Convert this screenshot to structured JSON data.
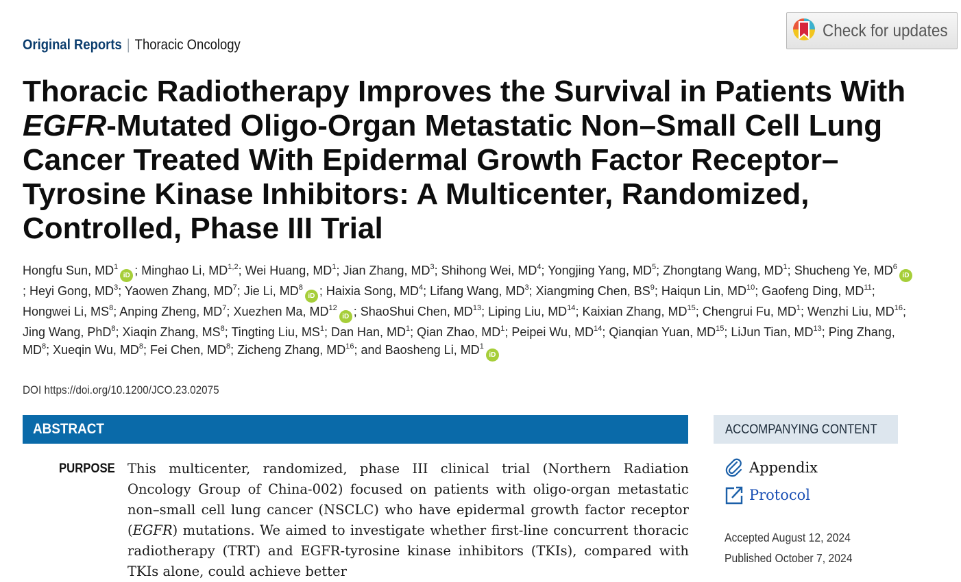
{
  "header": {
    "kind": "Original Reports",
    "separator": "|",
    "topic": "Thoracic Oncology",
    "check_updates": "Check for updates"
  },
  "title": {
    "part1": "Thoracic Radiotherapy Improves the Survival in Patients With ",
    "gene": "EGFR",
    "part2": "-Mutated Oligo-Organ Metastatic Non–Small Cell Lung Cancer Treated With Epidermal Growth Factor Receptor–Tyrosine Kinase Inhibitors: A Multicenter, Randomized, Controlled, Phase III Trial"
  },
  "authors": [
    {
      "name": "Hongfu Sun, MD",
      "aff": "1",
      "orcid": true
    },
    {
      "name": "Minghao Li, MD",
      "aff": "1,2",
      "orcid": false
    },
    {
      "name": "Wei Huang, MD",
      "aff": "1",
      "orcid": false
    },
    {
      "name": "Jian Zhang, MD",
      "aff": "3",
      "orcid": false
    },
    {
      "name": "Shihong Wei, MD",
      "aff": "4",
      "orcid": false
    },
    {
      "name": "Yongjing Yang, MD",
      "aff": "5",
      "orcid": false
    },
    {
      "name": "Zhongtang Wang, MD",
      "aff": "1",
      "orcid": false
    },
    {
      "name": "Shucheng Ye, MD",
      "aff": "6",
      "orcid": true
    },
    {
      "name": "Heyi Gong, MD",
      "aff": "3",
      "orcid": false
    },
    {
      "name": "Yaowen Zhang, MD",
      "aff": "7",
      "orcid": false
    },
    {
      "name": "Jie Li, MD",
      "aff": "8",
      "orcid": true
    },
    {
      "name": "Haixia Song, MD",
      "aff": "4",
      "orcid": false
    },
    {
      "name": "Lifang Wang, MD",
      "aff": "3",
      "orcid": false
    },
    {
      "name": "Xiangming Chen, BS",
      "aff": "9",
      "orcid": false
    },
    {
      "name": "Haiqun Lin, MD",
      "aff": "10",
      "orcid": false
    },
    {
      "name": "Gaofeng Ding, MD",
      "aff": "11",
      "orcid": false
    },
    {
      "name": "Hongwei Li, MS",
      "aff": "8",
      "orcid": false
    },
    {
      "name": "Anping Zheng, MD",
      "aff": "7",
      "orcid": false
    },
    {
      "name": "Xuezhen Ma, MD",
      "aff": "12",
      "orcid": true
    },
    {
      "name": "ShaoShui Chen, MD",
      "aff": "13",
      "orcid": false
    },
    {
      "name": "Liping Liu, MD",
      "aff": "14",
      "orcid": false
    },
    {
      "name": "Kaixian Zhang, MD",
      "aff": "15",
      "orcid": false
    },
    {
      "name": "Chengrui Fu, MD",
      "aff": "1",
      "orcid": false
    },
    {
      "name": "Wenzhi Liu, MD",
      "aff": "16",
      "orcid": false
    },
    {
      "name": "Jing Wang, PhD",
      "aff": "8",
      "orcid": false
    },
    {
      "name": "Xiaqin Zhang, MS",
      "aff": "8",
      "orcid": false
    },
    {
      "name": "Tingting Liu, MS",
      "aff": "1",
      "orcid": false
    },
    {
      "name": "Dan Han, MD",
      "aff": "1",
      "orcid": false
    },
    {
      "name": "Qian Zhao, MD",
      "aff": "1",
      "orcid": false
    },
    {
      "name": "Peipei Wu, MD",
      "aff": "14",
      "orcid": false
    },
    {
      "name": "Qianqian Yuan, MD",
      "aff": "15",
      "orcid": false
    },
    {
      "name": "LiJun Tian, MD",
      "aff": "13",
      "orcid": false
    },
    {
      "name": "Ping Zhang, MD",
      "aff": "8",
      "orcid": false
    },
    {
      "name": "Xueqin Wu, MD",
      "aff": "8",
      "orcid": false
    },
    {
      "name": "Fei Chen, MD",
      "aff": "8",
      "orcid": false
    },
    {
      "name": "Zicheng Zhang, MD",
      "aff": "16",
      "orcid": false
    },
    {
      "name": "Baosheng Li, MD",
      "aff": "1",
      "orcid": true
    }
  ],
  "author_joiner": "and",
  "orcid_badge": "iD",
  "doi": "DOI https://doi.org/10.1200/JCO.23.02075",
  "abstract": {
    "heading": "ABSTRACT",
    "purpose_label": "PURPOSE",
    "purpose_text_1": "This multicenter, randomized, phase III clinical trial (Northern Radiation Oncology Group of China-002) focused on patients with oligo-organ metastatic non–small cell lung cancer (NSCLC) who have epidermal growth factor receptor (",
    "purpose_gene": "EGFR",
    "purpose_text_2": ") mutations. We aimed to investigate whether first-line concurrent thoracic radiotherapy (TRT) and EGFR-tyrosine kinase inhibitors (TKIs), compared with TKIs alone, could achieve better"
  },
  "sidebar": {
    "heading": "ACCOMPANYING CONTENT",
    "appendix": "Appendix",
    "protocol": "Protocol",
    "accepted": "Accepted August 12, 2024",
    "published": "Published October 7, 2024"
  },
  "colors": {
    "brand_navy": "#0b3d6e",
    "abstract_bar": "#0a6aa9",
    "sidebar_bar": "#dde6ee",
    "orcid_green": "#a6ce39",
    "link_blue": "#1a4fb4"
  }
}
